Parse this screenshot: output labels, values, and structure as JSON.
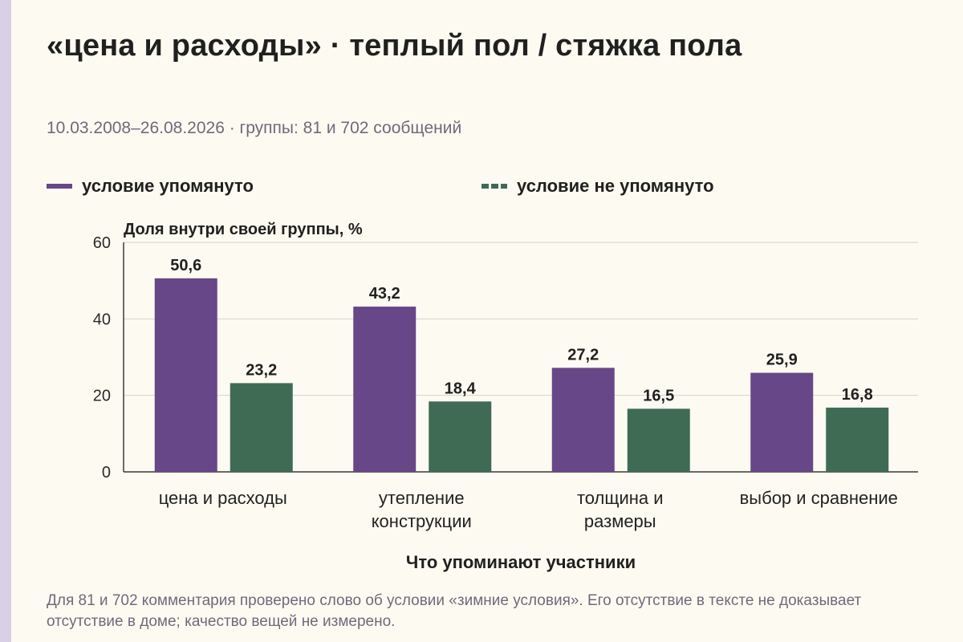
{
  "title": "«цена и расходы» · теплый пол / стяжка пола",
  "subtitle": "10.03.2008–26.08.2026 · группы: 81 и 702 сообщений",
  "legend": [
    {
      "label": "условие упомянуто",
      "color": "#674787",
      "style": "solid"
    },
    {
      "label": "условие не упомянуто",
      "color": "#3f6b54",
      "style": "dashed"
    }
  ],
  "footnote": "Для 81 и 702 комментария проверено слово об условии «зимние условия». Его отсутствие в тексте не доказывает отсутствие в доме; качество вещей не измерено.",
  "chart_data": {
    "type": "bar",
    "title": "«цена и расходы» · теплый пол / стяжка пола",
    "ylabel": "Доля внутри своей группы, %",
    "xlabel": "Что упоминают участники",
    "ylim": [
      0,
      60
    ],
    "yticks": [
      0,
      20,
      40,
      60
    ],
    "grid": true,
    "legend_position": "top",
    "categories": [
      [
        "цена и расходы"
      ],
      [
        "утепление",
        "конструкции"
      ],
      [
        "толщина и",
        "размеры"
      ],
      [
        "выбор и сравнение"
      ]
    ],
    "series": [
      {
        "name": "условие упомянуто",
        "color": "#674787",
        "values": [
          50.6,
          43.2,
          27.2,
          25.9
        ],
        "labels": [
          "50,6",
          "43,2",
          "27,2",
          "25,9"
        ]
      },
      {
        "name": "условие не упомянуто",
        "color": "#3f6b54",
        "values": [
          23.2,
          18.4,
          16.5,
          16.8
        ],
        "labels": [
          "23,2",
          "18,4",
          "16,5",
          "16,8"
        ]
      }
    ]
  }
}
